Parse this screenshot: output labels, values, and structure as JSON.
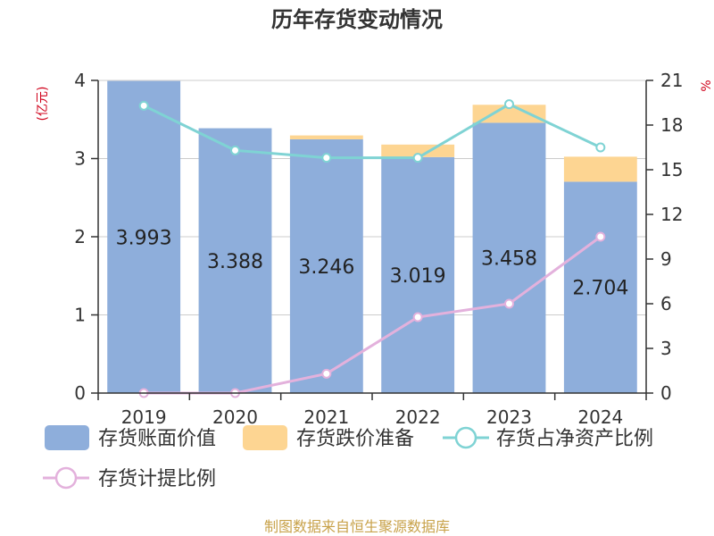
{
  "title": "历年存货变动情况",
  "left_unit": "(亿元)",
  "right_unit": "%",
  "source": "制图数据来自恒生聚源数据库",
  "colors": {
    "book_value": "#8eaedb",
    "impairment": "#fdd592",
    "net_assets_ratio": "#7fd3d4",
    "provision_ratio": "#e3b1dc"
  },
  "chart_data": {
    "type": "bar",
    "categories": [
      "2019",
      "2020",
      "2021",
      "2022",
      "2023",
      "2024"
    ],
    "y_left": {
      "label": "(亿元)",
      "range": [
        0,
        4
      ],
      "ticks": [
        0,
        1,
        2,
        3,
        4
      ]
    },
    "y_right": {
      "label": "%",
      "range": [
        0,
        21
      ],
      "ticks": [
        0,
        3,
        6,
        9,
        12,
        15,
        18,
        21
      ]
    },
    "series": [
      {
        "name": "存货账面价值",
        "kind": "bar-stack",
        "axis": "left",
        "values": [
          3.993,
          3.388,
          3.246,
          3.019,
          3.458,
          2.704
        ],
        "labels": [
          "3.993",
          "3.388",
          "3.246",
          "3.019",
          "3.458",
          "2.704"
        ]
      },
      {
        "name": "存货跌价准备",
        "kind": "bar-stack",
        "axis": "left",
        "values": [
          0.0,
          0.0,
          0.05,
          0.16,
          0.23,
          0.32
        ]
      },
      {
        "name": "存货占净资产比例",
        "kind": "line",
        "axis": "right",
        "values": [
          19.3,
          16.3,
          15.8,
          15.8,
          19.4,
          16.5
        ]
      },
      {
        "name": "存货计提比例",
        "kind": "line",
        "axis": "right",
        "values": [
          0.0,
          0.0,
          1.3,
          5.1,
          6.0,
          10.5
        ]
      }
    ],
    "grid": true,
    "legend": "bottom"
  }
}
